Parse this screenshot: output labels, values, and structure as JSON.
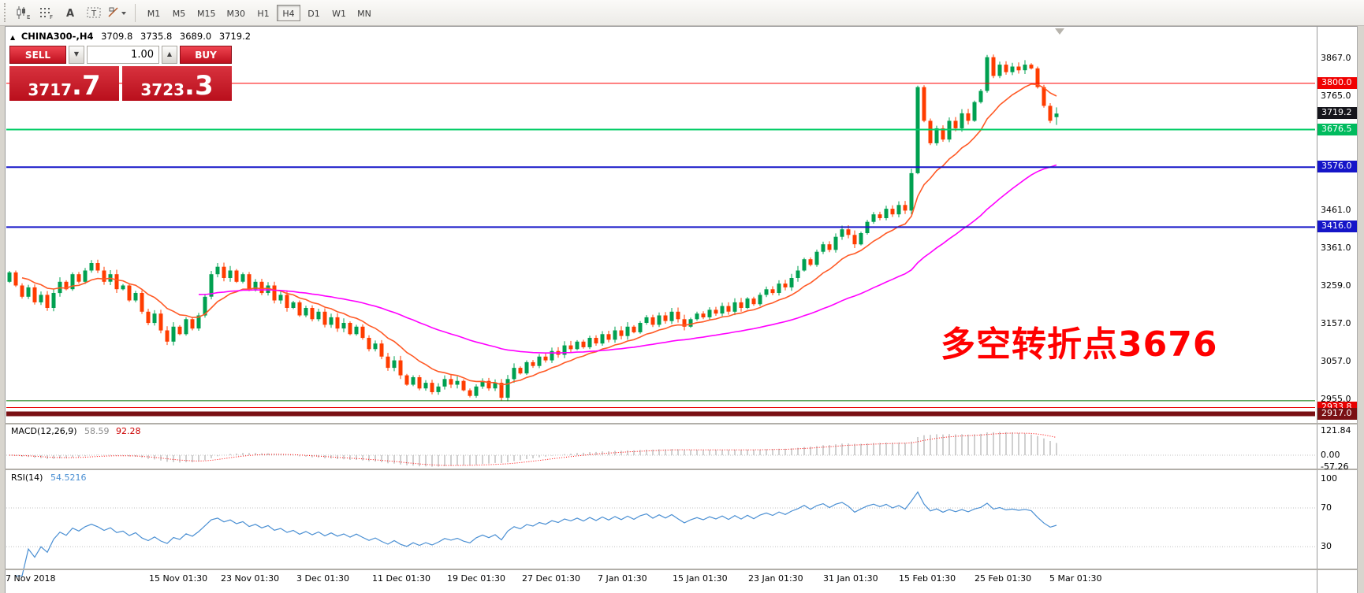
{
  "toolbar": {
    "timeframes": [
      "M1",
      "M5",
      "M15",
      "M30",
      "H1",
      "H4",
      "D1",
      "W1",
      "MN"
    ],
    "active_timeframe": "H4"
  },
  "chart": {
    "header": {
      "marker": "▲",
      "symbol_period": "CHINA300-,H4",
      "open": "3709.8",
      "high": "3735.8",
      "low": "3689.0",
      "close": "3719.2"
    },
    "one_click": {
      "sell_label": "SELL",
      "buy_label": "BUY",
      "volume": "1.00",
      "volume_down_glyph": "▼",
      "volume_up_glyph": "▲",
      "sell_price_main": "3717",
      "sell_price_big": ".7",
      "buy_price_main": "3723",
      "buy_price_big": ".3"
    },
    "annotation": {
      "text": "多空转折点3676",
      "color": "#ff0000"
    },
    "axis_labels": [
      {
        "text": "3867.0",
        "price": 3867.0
      },
      {
        "text": "3765.0",
        "price": 3765.0
      },
      {
        "text": "3461.0",
        "price": 3461.0
      },
      {
        "text": "3361.0",
        "price": 3361.0
      },
      {
        "text": "3259.0",
        "price": 3259.0
      },
      {
        "text": "3157.0",
        "price": 3157.0
      },
      {
        "text": "3057.0",
        "price": 3057.0
      },
      {
        "text": "2955.0",
        "price": 2955.0
      }
    ],
    "price_tags": [
      {
        "text": "3800.0",
        "price": 3800.0,
        "bg": "#f00000"
      },
      {
        "text": "3719.2",
        "price": 3719.2,
        "bg": "#16161c"
      },
      {
        "text": "3676.5",
        "price": 3676.5,
        "bg": "#00bb5e"
      },
      {
        "text": "3576.0",
        "price": 3576.0,
        "bg": "#1515c8"
      },
      {
        "text": "3416.0",
        "price": 3416.0,
        "bg": "#1515c8"
      },
      {
        "text": "2933.8",
        "price": 2933.8,
        "bg": "#e80000"
      },
      {
        "text": "2917.0",
        "price": 2917.0,
        "bg": "#7a1014"
      }
    ],
    "hlines": [
      {
        "price": 3800,
        "color": "#ff0000",
        "width": 1
      },
      {
        "price": 3676.5,
        "color": "#00cc66",
        "width": 2
      },
      {
        "price": 3576,
        "color": "#1515c8",
        "width": 2
      },
      {
        "price": 3416,
        "color": "#1515c8",
        "width": 2
      },
      {
        "price": 2952,
        "color": "#007000",
        "width": 1
      },
      {
        "price": 2933.8,
        "color": "#e80000",
        "width": 1
      },
      {
        "price": 2917,
        "color": "#7a1014",
        "width": 6
      }
    ]
  },
  "chart_data": {
    "type": "candlestick",
    "symbol": "CHINA300-",
    "period": "H4",
    "first_open": 3270,
    "closes": [
      3295,
      3260,
      3230,
      3255,
      3215,
      3235,
      3200,
      3240,
      3270,
      3250,
      3290,
      3270,
      3300,
      3320,
      3300,
      3270,
      3290,
      3250,
      3260,
      3220,
      3240,
      3190,
      3160,
      3185,
      3140,
      3110,
      3150,
      3130,
      3170,
      3145,
      3180,
      3230,
      3290,
      3310,
      3280,
      3300,
      3270,
      3290,
      3250,
      3270,
      3240,
      3260,
      3220,
      3235,
      3200,
      3215,
      3180,
      3200,
      3170,
      3190,
      3155,
      3175,
      3145,
      3160,
      3130,
      3150,
      3120,
      3090,
      3105,
      3070,
      3040,
      3060,
      3020,
      2995,
      3015,
      2985,
      3000,
      2975,
      2990,
      3010,
      2995,
      3005,
      2980,
      2965,
      2990,
      3005,
      2985,
      3000,
      2960,
      3010,
      3040,
      3025,
      3055,
      3045,
      3070,
      3060,
      3085,
      3075,
      3100,
      3090,
      3110,
      3095,
      3120,
      3105,
      3130,
      3115,
      3140,
      3125,
      3150,
      3135,
      3160,
      3175,
      3155,
      3180,
      3165,
      3190,
      3170,
      3150,
      3170,
      3185,
      3175,
      3195,
      3185,
      3205,
      3190,
      3215,
      3200,
      3225,
      3210,
      3235,
      3250,
      3240,
      3265,
      3255,
      3280,
      3300,
      3330,
      3315,
      3350,
      3370,
      3355,
      3390,
      3410,
      3395,
      3370,
      3400,
      3430,
      3450,
      3440,
      3465,
      3450,
      3475,
      3460,
      3560,
      3790,
      3700,
      3640,
      3680,
      3650,
      3700,
      3680,
      3720,
      3700,
      3750,
      3780,
      3870,
      3820,
      3850,
      3830,
      3845,
      3835,
      3850,
      3840,
      3790,
      3740,
      3700,
      3719.2
    ],
    "last_ohlc": [
      3709.8,
      3735.8,
      3689.0,
      3719.2
    ],
    "up_color": "#00a050",
    "down_color": "#ff3c00",
    "ma_fast_color": "#ff5a26",
    "ma_slow_color": "#ff00ff",
    "price_axis_visible_range": [
      2895,
      3947
    ]
  },
  "macd": {
    "label": "MACD(12,26,9)",
    "value_main": "58.59",
    "value_signal": "92.28",
    "axis": [
      "121.84",
      "0.00",
      "-57.26"
    ],
    "histogram_color": "#bbbbbb",
    "signal_color": "#ff0000"
  },
  "rsi": {
    "label": "RSI(14)",
    "value": "54.5216",
    "axis": [
      "100",
      "70",
      "30"
    ],
    "levels": [
      70,
      30
    ],
    "line_color": "#4a8fd3"
  },
  "time_axis": {
    "labels": [
      "7 Nov 2018",
      "15 Nov 01:30",
      "23 Nov 01:30",
      "3 Dec 01:30",
      "11 Dec 01:30",
      "19 Dec 01:30",
      "27 Dec 01:30",
      "7 Jan 01:30",
      "15 Jan 01:30",
      "23 Jan 01:30",
      "31 Jan 01:30",
      "15 Feb 01:30",
      "25 Feb 01:30",
      "5 Mar 01:30"
    ]
  }
}
